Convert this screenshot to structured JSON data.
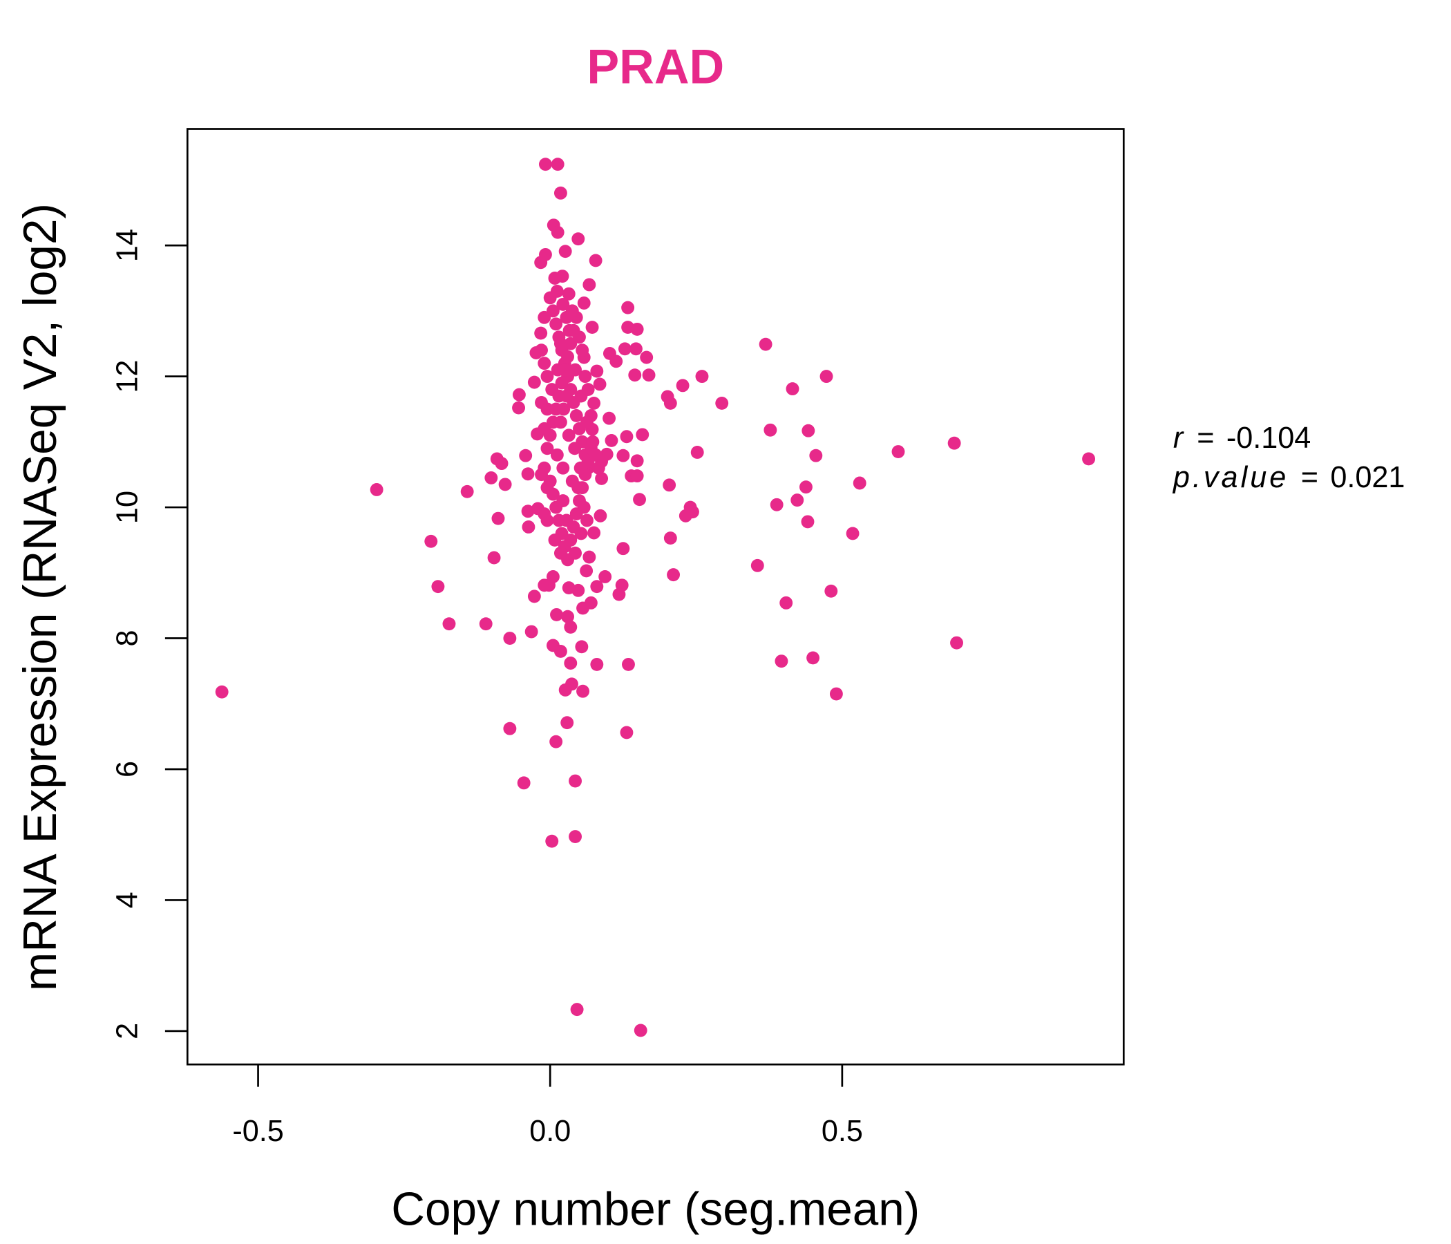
{
  "chart_data": {
    "type": "scatter",
    "title": "PRAD",
    "xlabel": "Copy number (seg.mean)",
    "ylabel": "mRNA Expression (RNASeq V2, log2)",
    "xlim": [
      -0.621,
      0.982
    ],
    "ylim": [
      1.49,
      15.78
    ],
    "xticks": [
      -0.5,
      0.0,
      0.5
    ],
    "xtick_labels": [
      "-0.5",
      "0.0",
      "0.5"
    ],
    "yticks": [
      2,
      4,
      6,
      8,
      10,
      12,
      14
    ],
    "ytick_labels": [
      "2",
      "4",
      "6",
      "8",
      "10",
      "12",
      "14"
    ],
    "grid": false,
    "point_color": "#E7298A",
    "stats": {
      "r_label": "r",
      "r_value": "-0.104",
      "p_label": "p.value",
      "p_value": "0.021",
      "equals": "="
    },
    "points": [
      [
        -0.562,
        7.18
      ],
      [
        -0.297,
        10.27
      ],
      [
        -0.204,
        9.48
      ],
      [
        -0.192,
        8.79
      ],
      [
        -0.173,
        8.22
      ],
      [
        -0.142,
        10.24
      ],
      [
        -0.11,
        8.22
      ],
      [
        -0.101,
        10.45
      ],
      [
        -0.096,
        9.23
      ],
      [
        -0.091,
        10.74
      ],
      [
        -0.089,
        9.83
      ],
      [
        -0.083,
        10.67
      ],
      [
        -0.077,
        10.35
      ],
      [
        -0.069,
        8.0
      ],
      [
        -0.069,
        6.62
      ],
      [
        -0.054,
        11.52
      ],
      [
        -0.053,
        11.72
      ],
      [
        -0.045,
        5.79
      ],
      [
        -0.042,
        10.79
      ],
      [
        -0.038,
        10.51
      ],
      [
        -0.038,
        9.94
      ],
      [
        -0.037,
        9.7
      ],
      [
        -0.032,
        8.1
      ],
      [
        -0.027,
        8.64
      ],
      [
        -0.022,
        11.12
      ],
      [
        -0.024,
        12.36
      ],
      [
        -0.021,
        9.98
      ],
      [
        -0.027,
        11.91
      ],
      [
        -0.008,
        15.24
      ],
      [
        0.013,
        15.24
      ],
      [
        0.018,
        14.8
      ],
      [
        0.006,
        14.31
      ],
      [
        0.013,
        14.2
      ],
      [
        0.048,
        14.1
      ],
      [
        0.026,
        13.91
      ],
      [
        0.078,
        13.77
      ],
      [
        -0.016,
        13.74
      ],
      [
        -0.008,
        13.86
      ],
      [
        0.067,
        13.4
      ],
      [
        0.021,
        13.53
      ],
      [
        0.058,
        13.12
      ],
      [
        0.133,
        13.05
      ],
      [
        0.032,
        13.26
      ],
      [
        0.072,
        12.75
      ],
      [
        0.133,
        12.75
      ],
      [
        0.149,
        12.72
      ],
      [
        -0.016,
        12.66
      ],
      [
        0.369,
        12.49
      ],
      [
        0.102,
        12.35
      ],
      [
        0.128,
        12.42
      ],
      [
        0.147,
        12.42
      ],
      [
        0.165,
        12.29
      ],
      [
        0.113,
        12.23
      ],
      [
        0.058,
        12.29
      ],
      [
        0.473,
        12.0
      ],
      [
        0.26,
        12.0
      ],
      [
        0.145,
        12.02
      ],
      [
        0.169,
        12.02
      ],
      [
        0.08,
        12.08
      ],
      [
        0.085,
        11.88
      ],
      [
        0.227,
        11.86
      ],
      [
        0.415,
        11.81
      ],
      [
        0.201,
        11.69
      ],
      [
        0.206,
        11.59
      ],
      [
        0.294,
        11.59
      ],
      [
        0.075,
        11.59
      ],
      [
        0.101,
        11.36
      ],
      [
        0.072,
        11.19
      ],
      [
        0.377,
        11.18
      ],
      [
        0.442,
        11.17
      ],
      [
        0.158,
        11.11
      ],
      [
        0.131,
        11.08
      ],
      [
        0.105,
        11.02
      ],
      [
        0.692,
        10.98
      ],
      [
        0.596,
        10.85
      ],
      [
        0.455,
        10.79
      ],
      [
        0.252,
        10.84
      ],
      [
        0.922,
        10.74
      ],
      [
        0.149,
        10.71
      ],
      [
        0.125,
        10.79
      ],
      [
        0.088,
        10.7
      ],
      [
        0.097,
        10.81
      ],
      [
        0.139,
        10.48
      ],
      [
        0.149,
        10.48
      ],
      [
        0.088,
        10.44
      ],
      [
        0.53,
        10.37
      ],
      [
        0.438,
        10.31
      ],
      [
        0.204,
        10.34
      ],
      [
        0.153,
        10.12
      ],
      [
        0.423,
        10.11
      ],
      [
        0.388,
        10.04
      ],
      [
        0.24,
        10.0
      ],
      [
        0.244,
        9.93
      ],
      [
        0.232,
        9.87
      ],
      [
        0.086,
        9.87
      ],
      [
        0.441,
        9.78
      ],
      [
        0.075,
        9.61
      ],
      [
        0.518,
        9.6
      ],
      [
        0.206,
        9.53
      ],
      [
        0.125,
        9.37
      ],
      [
        0.067,
        9.24
      ],
      [
        0.355,
        9.11
      ],
      [
        0.211,
        8.97
      ],
      [
        0.094,
        8.94
      ],
      [
        0.062,
        9.03
      ],
      [
        0.005,
        8.94
      ],
      [
        0.123,
        8.81
      ],
      [
        0.08,
        8.79
      ],
      [
        0.118,
        8.67
      ],
      [
        0.481,
        8.72
      ],
      [
        0.048,
        8.73
      ],
      [
        0.032,
        8.77
      ],
      [
        -0.002,
        8.81
      ],
      [
        -0.01,
        8.81
      ],
      [
        0.07,
        8.54
      ],
      [
        0.404,
        8.54
      ],
      [
        0.056,
        8.46
      ],
      [
        0.011,
        8.36
      ],
      [
        0.03,
        8.33
      ],
      [
        0.035,
        8.17
      ],
      [
        0.005,
        7.89
      ],
      [
        0.054,
        7.87
      ],
      [
        0.696,
        7.93
      ],
      [
        0.018,
        7.8
      ],
      [
        0.035,
        7.62
      ],
      [
        0.08,
        7.6
      ],
      [
        0.134,
        7.6
      ],
      [
        0.396,
        7.65
      ],
      [
        0.45,
        7.7
      ],
      [
        0.037,
        7.3
      ],
      [
        0.026,
        7.21
      ],
      [
        0.056,
        7.19
      ],
      [
        0.49,
        7.15
      ],
      [
        0.029,
        6.71
      ],
      [
        0.131,
        6.56
      ],
      [
        0.01,
        6.42
      ],
      [
        0.043,
        5.82
      ],
      [
        0.003,
        4.9
      ],
      [
        0.043,
        4.97
      ],
      [
        0.046,
        2.33
      ],
      [
        0.155,
        2.01
      ],
      [
        0.0,
        13.2
      ],
      [
        0.005,
        13.0
      ],
      [
        0.01,
        12.8
      ],
      [
        0.015,
        12.6
      ],
      [
        0.02,
        12.4
      ],
      [
        0.025,
        12.2
      ],
      [
        0.03,
        12.0
      ],
      [
        0.035,
        11.8
      ],
      [
        0.04,
        11.6
      ],
      [
        0.045,
        11.4
      ],
      [
        0.05,
        11.2
      ],
      [
        0.055,
        11.0
      ],
      [
        0.06,
        10.8
      ],
      [
        0.065,
        10.6
      ],
      [
        0.0,
        10.4
      ],
      [
        0.005,
        10.2
      ],
      [
        0.01,
        10.0
      ],
      [
        0.015,
        9.8
      ],
      [
        0.02,
        9.6
      ],
      [
        0.025,
        9.4
      ],
      [
        0.03,
        9.2
      ],
      [
        0.035,
        9.5
      ],
      [
        0.04,
        9.7
      ],
      [
        0.045,
        9.9
      ],
      [
        0.05,
        10.1
      ],
      [
        0.055,
        10.3
      ],
      [
        0.06,
        10.5
      ],
      [
        0.065,
        10.7
      ],
      [
        0.07,
        10.9
      ],
      [
        0.0,
        11.1
      ],
      [
        0.005,
        11.3
      ],
      [
        0.01,
        11.5
      ],
      [
        0.015,
        11.7
      ],
      [
        0.02,
        11.9
      ],
      [
        0.025,
        12.1
      ],
      [
        0.03,
        12.3
      ],
      [
        0.035,
        12.5
      ],
      [
        0.04,
        12.7
      ],
      [
        0.045,
        12.9
      ],
      [
        0.05,
        12.6
      ],
      [
        0.055,
        12.4
      ],
      [
        0.06,
        12.0
      ],
      [
        0.065,
        11.8
      ],
      [
        0.07,
        11.4
      ],
      [
        -0.005,
        12.0
      ],
      [
        -0.005,
        11.5
      ],
      [
        -0.005,
        10.9
      ],
      [
        -0.005,
        10.3
      ],
      [
        -0.005,
        9.8
      ],
      [
        -0.01,
        12.9
      ],
      [
        -0.01,
        12.2
      ],
      [
        -0.01,
        11.2
      ],
      [
        -0.01,
        10.6
      ],
      [
        -0.01,
        9.9
      ],
      [
        -0.015,
        12.4
      ],
      [
        -0.015,
        11.6
      ],
      [
        -0.015,
        10.5
      ],
      [
        0.008,
        13.5
      ],
      [
        0.012,
        13.3
      ],
      [
        0.022,
        13.1
      ],
      [
        0.028,
        12.9
      ],
      [
        0.033,
        12.7
      ],
      [
        0.038,
        13.0
      ],
      [
        0.018,
        12.5
      ],
      [
        0.028,
        11.7
      ],
      [
        0.018,
        11.3
      ],
      [
        0.032,
        11.1
      ],
      [
        0.042,
        10.9
      ],
      [
        0.052,
        10.6
      ],
      [
        0.012,
        10.8
      ],
      [
        0.022,
        10.6
      ],
      [
        0.038,
        10.4
      ],
      [
        0.048,
        10.3
      ],
      [
        0.058,
        10.0
      ],
      [
        0.022,
        10.1
      ],
      [
        0.008,
        9.5
      ],
      [
        0.018,
        9.3
      ],
      [
        0.043,
        9.3
      ],
      [
        0.053,
        9.6
      ],
      [
        0.063,
        9.8
      ],
      [
        0.028,
        9.8
      ],
      [
        0.003,
        11.8
      ],
      [
        0.013,
        12.1
      ],
      [
        0.023,
        11.5
      ],
      [
        0.043,
        12.1
      ],
      [
        0.053,
        11.7
      ],
      [
        0.063,
        11.3
      ],
      [
        0.073,
        11.0
      ],
      [
        0.078,
        10.8
      ],
      [
        0.083,
        10.6
      ]
    ]
  }
}
